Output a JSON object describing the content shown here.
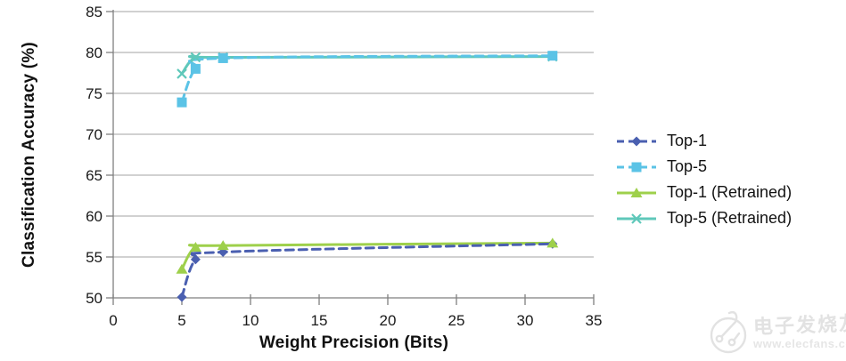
{
  "watermark": {
    "brand": "电子发烧友",
    "site": "www.elecfans.com"
  },
  "chart_data": {
    "type": "line",
    "title": "",
    "xlabel": "Weight Precision (Bits)",
    "ylabel": "Classification Accuracy (%)",
    "xlim": [
      0,
      35
    ],
    "ylim": [
      50,
      85
    ],
    "xticks": [
      0,
      5,
      10,
      15,
      20,
      25,
      30,
      35
    ],
    "yticks": [
      50,
      55,
      60,
      65,
      70,
      75,
      80,
      85
    ],
    "grid": "horizontal",
    "legend_position": "right",
    "x": [
      5,
      6,
      8,
      32
    ],
    "series": [
      {
        "name": "Top-1",
        "values": [
          50.1,
          54.7,
          55.6,
          56.6
        ],
        "color": "#4a5fb0",
        "dashed": true,
        "marker": "diamond"
      },
      {
        "name": "Top-5",
        "values": [
          73.9,
          78.0,
          79.3,
          79.6
        ],
        "color": "#5bc3e6",
        "dashed": true,
        "marker": "square"
      },
      {
        "name": "Top-1 (Retrained)",
        "values": [
          53.5,
          56.2,
          56.4,
          56.7
        ],
        "color": "#9ed04b",
        "dashed": false,
        "marker": "triangle"
      },
      {
        "name": "Top-5 (Retrained)",
        "values": [
          77.4,
          79.4,
          79.4,
          79.5
        ],
        "color": "#5fc8ba",
        "dashed": false,
        "marker": "x"
      }
    ],
    "colors": {
      "grid": "#a3a3a3",
      "axis": "#7f7f7f",
      "tick_text": "#1a1a1a"
    }
  }
}
